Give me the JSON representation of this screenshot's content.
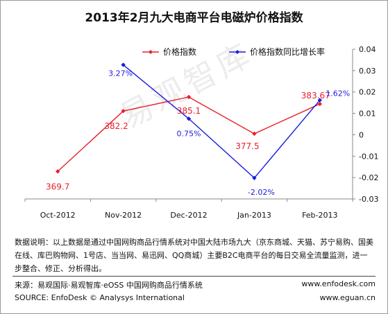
{
  "title": "2013年2月九大电商平台电磁炉价格指数",
  "watermark": "易观智库",
  "chart_data": {
    "type": "line",
    "categories": [
      "Oct-2012",
      "Nov-2012",
      "Dec-2012",
      "Jan-2013",
      "Feb-2013"
    ],
    "series": [
      {
        "name": "价格指数",
        "axis": "left",
        "color": "#e8202a",
        "values": [
          369.7,
          382.2,
          385.1,
          377.5,
          383.67
        ],
        "labels": [
          "369.7",
          "382.2",
          "385.1",
          "377.5",
          "383.67"
        ]
      },
      {
        "name": "价格指数同比增长率",
        "axis": "right",
        "color": "#1a1ae0",
        "values": [
          null,
          0.0327,
          0.0075,
          -0.0202,
          0.0162
        ],
        "labels": [
          "",
          "3.27%",
          "0.75%",
          "-2.02%",
          "1.62%"
        ]
      }
    ],
    "right_axis": {
      "ylim": [
        -0.03,
        0.04
      ],
      "ticks": [
        0.04,
        0.03,
        0.02,
        0.01,
        0,
        -0.01,
        -0.02,
        -0.03
      ],
      "tick_labels": [
        "0.04",
        "0.03",
        "0.02",
        "0.01",
        "0",
        "-0.01",
        "-0.02",
        "-0.03"
      ]
    },
    "legend": "top-right",
    "grid": false
  },
  "notes": {
    "description": "数据说明：以上数据是通过中国网购商品行情系统对中国大陆市场九大（京东商城、天猫、苏宁易购、国美在线、库巴购物网、1号店、当当网、易迅网、QQ商城）主要B2C电商平台的每日交易全流量监测，进一步整合、修正、分析得出。"
  },
  "footer": {
    "source_cn": "来源：易观国际·易观智库·eOSS 中国网购商品行情系统",
    "source_en": "SOURCE: EnfoDesk © Analysys International",
    "url1": "www.enfodesk.com",
    "url2": "www.eguan.cn"
  }
}
